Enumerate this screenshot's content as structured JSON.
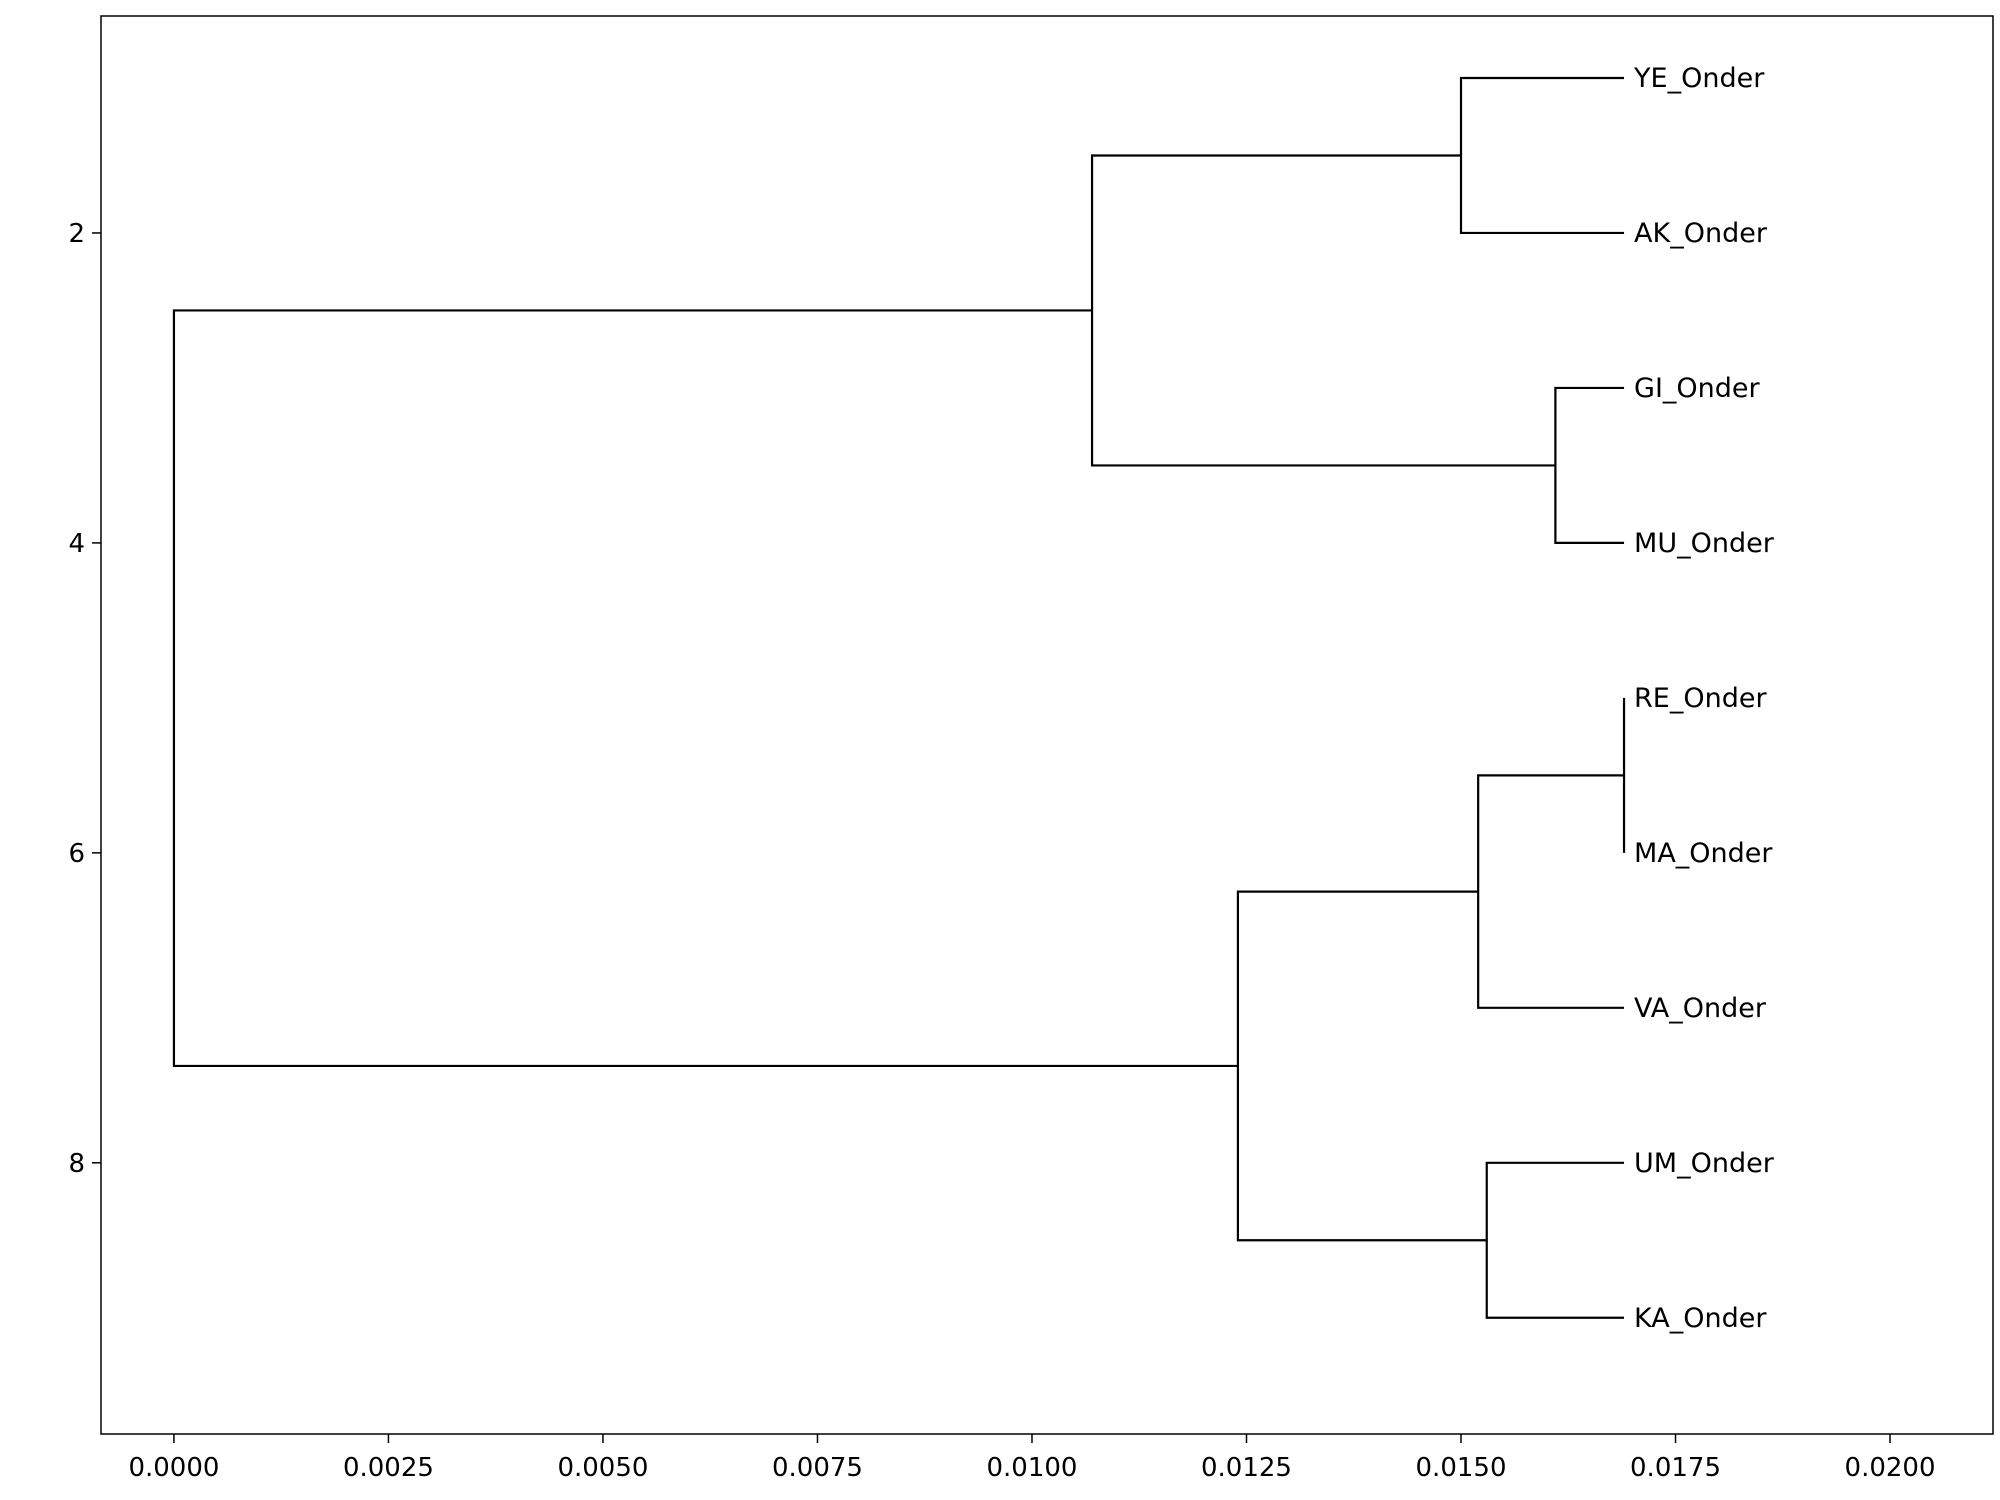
{
  "chart_data": {
    "type": "dendrogram",
    "orientation": "left-to-right",
    "xlim": [
      -0.00085,
      0.0212
    ],
    "ylim": [
      0.6,
      9.75
    ],
    "x_ticks": [
      0.0,
      0.0025,
      0.005,
      0.0075,
      0.01,
      0.0125,
      0.015,
      0.0175,
      0.02
    ],
    "x_tick_labels": [
      "0.0000",
      "0.0025",
      "0.0050",
      "0.0075",
      "0.0100",
      "0.0125",
      "0.0150",
      "0.0175",
      "0.0200"
    ],
    "y_ticks": [
      2,
      4,
      6,
      8
    ],
    "y_tick_labels": [
      "2",
      "4",
      "6",
      "8"
    ],
    "leaves": [
      {
        "label": "YE_Onder",
        "y": 1,
        "x": 0.0169
      },
      {
        "label": "AK_Onder",
        "y": 2,
        "x": 0.0169
      },
      {
        "label": "GI_Onder",
        "y": 3,
        "x": 0.0169
      },
      {
        "label": "MU_Onder",
        "y": 4,
        "x": 0.0169
      },
      {
        "label": "RE_Onder",
        "y": 5,
        "x": 0.0169
      },
      {
        "label": "MA_Onder",
        "y": 6,
        "x": 0.0169
      },
      {
        "label": "VA_Onder",
        "y": 7,
        "x": 0.0169
      },
      {
        "label": "UM_Onder",
        "y": 8,
        "x": 0.0169
      },
      {
        "label": "KA_Onder",
        "y": 9,
        "x": 0.0169
      }
    ],
    "merges": [
      {
        "x": 0.015,
        "y_top": 1,
        "y_bottom": 2,
        "x_top": 0.0169,
        "x_bottom": 0.0169
      },
      {
        "x": 0.0161,
        "y_top": 3,
        "y_bottom": 4,
        "x_top": 0.0169,
        "x_bottom": 0.0169
      },
      {
        "x": 0.0107,
        "y_top": 1.5,
        "y_bottom": 3.5,
        "x_top": 0.015,
        "x_bottom": 0.0161
      },
      {
        "x": 0.0169,
        "y_top": 5,
        "y_bottom": 6,
        "x_top": 0.0169,
        "x_bottom": 0.0169
      },
      {
        "x": 0.0152,
        "y_top": 5.5,
        "y_bottom": 7,
        "x_top": 0.0169,
        "x_bottom": 0.0169
      },
      {
        "x": 0.0153,
        "y_top": 8,
        "y_bottom": 9,
        "x_top": 0.0169,
        "x_bottom": 0.0169
      },
      {
        "x": 0.0124,
        "y_top": 6.25,
        "y_bottom": 8.5,
        "x_top": 0.0152,
        "x_bottom": 0.0153
      },
      {
        "x": 0.0,
        "y_top": 2.5,
        "y_bottom": 7.375,
        "x_top": 0.0107,
        "x_bottom": 0.0124
      }
    ],
    "grid": false,
    "legend": "none",
    "line_color": "#000000"
  }
}
